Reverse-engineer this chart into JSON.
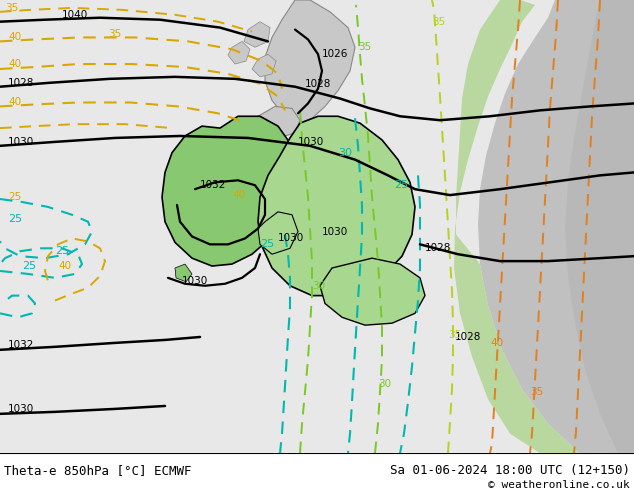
{
  "title_left": "Theta-e 850hPa [°C] ECMWF",
  "title_right": "Sa 01-06-2024 18:00 UTC (12+150)",
  "copyright": "© weatheronline.co.uk",
  "ocean_color": "#e8e8e8",
  "land_color": "#c8c8c8",
  "green_color": "#a8d890",
  "fig_width": 6.34,
  "fig_height": 4.9,
  "dpi": 100
}
